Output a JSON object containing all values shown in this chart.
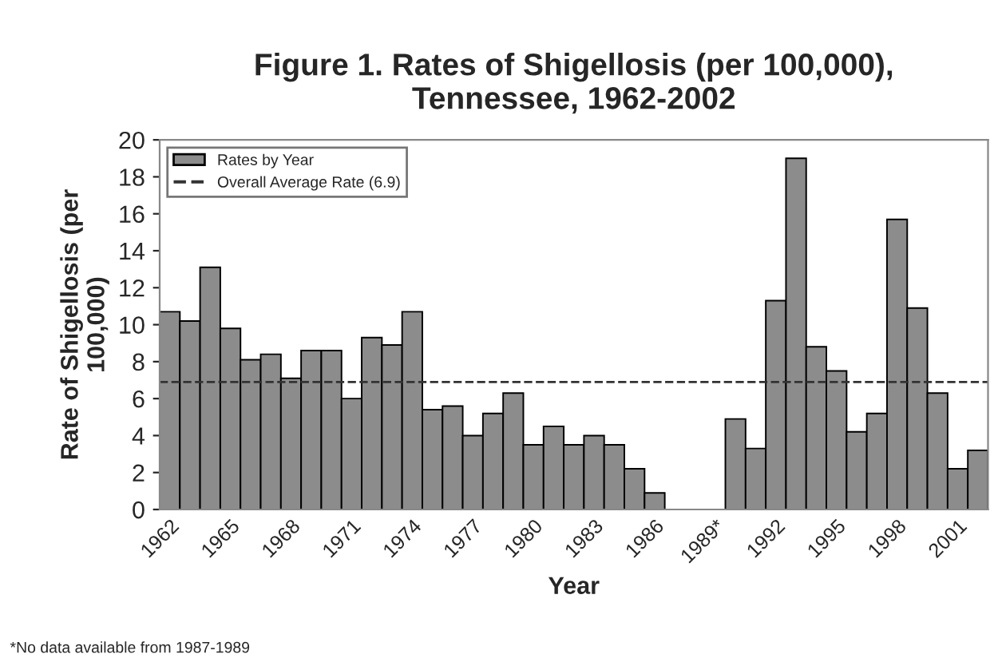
{
  "chart_data": {
    "type": "bar",
    "title": "Figure 1. Rates of Shigellosis (per 100,000),\nTennessee, 1962-2002",
    "xlabel": "Year",
    "ylabel": "Rate of Shigellosis (per\n100,000)",
    "categories": [
      "1962",
      null,
      null,
      "1965",
      null,
      null,
      "1968",
      null,
      null,
      "1971",
      null,
      null,
      "1974",
      null,
      null,
      "1977",
      null,
      null,
      "1980",
      null,
      null,
      "1983",
      null,
      null,
      "1986",
      null,
      null,
      "1989*",
      null,
      null,
      "1992",
      null,
      null,
      "1995",
      null,
      null,
      "1998",
      null,
      null,
      "2001",
      null
    ],
    "series": [
      {
        "name": "Rates by Year",
        "color": "#8c8c8c",
        "values": [
          10.7,
          10.2,
          13.1,
          9.8,
          8.1,
          8.4,
          7.1,
          8.6,
          8.6,
          6.0,
          9.3,
          8.9,
          10.7,
          5.4,
          5.6,
          4.0,
          5.2,
          6.3,
          3.5,
          4.5,
          3.5,
          4.0,
          3.5,
          2.2,
          0.9,
          null,
          null,
          null,
          4.9,
          3.3,
          11.3,
          19.0,
          8.8,
          7.5,
          4.2,
          5.2,
          15.7,
          10.9,
          6.3,
          2.2,
          3.2
        ]
      }
    ],
    "ref_lines": [
      {
        "axis": "y",
        "value": 6.9,
        "label": "Overall Average Rate (6.9)",
        "color": "#333333",
        "line_style": "dashed"
      }
    ],
    "ylim": [
      0,
      20
    ],
    "yticks": [
      0,
      2,
      4,
      6,
      8,
      10,
      12,
      14,
      16,
      18,
      20
    ],
    "grid": false,
    "legend": "top left",
    "annotations": [
      "*No data available from 1987-1989"
    ]
  }
}
